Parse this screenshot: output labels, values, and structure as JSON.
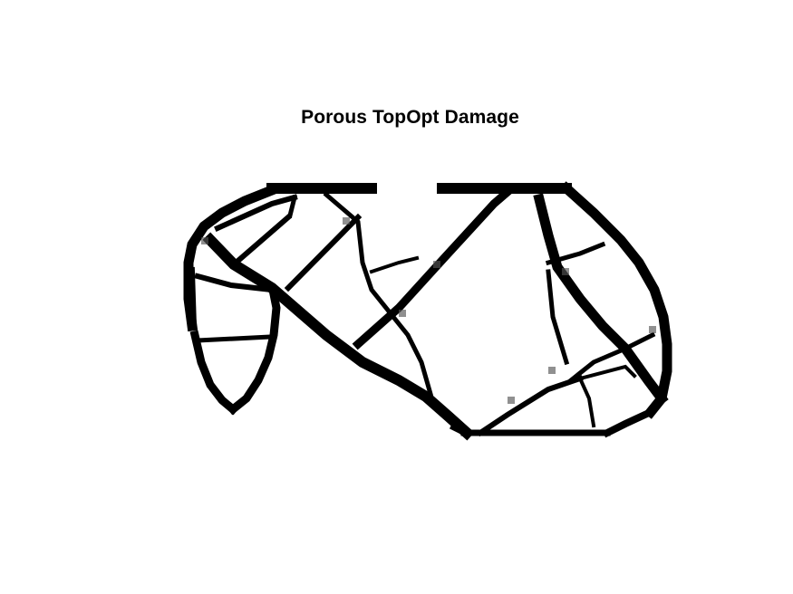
{
  "figure": {
    "title": "Porous TopOpt Damage"
  },
  "colors": {
    "background": "#ffffff",
    "material": "#000000",
    "partial_material": "#555555"
  }
}
